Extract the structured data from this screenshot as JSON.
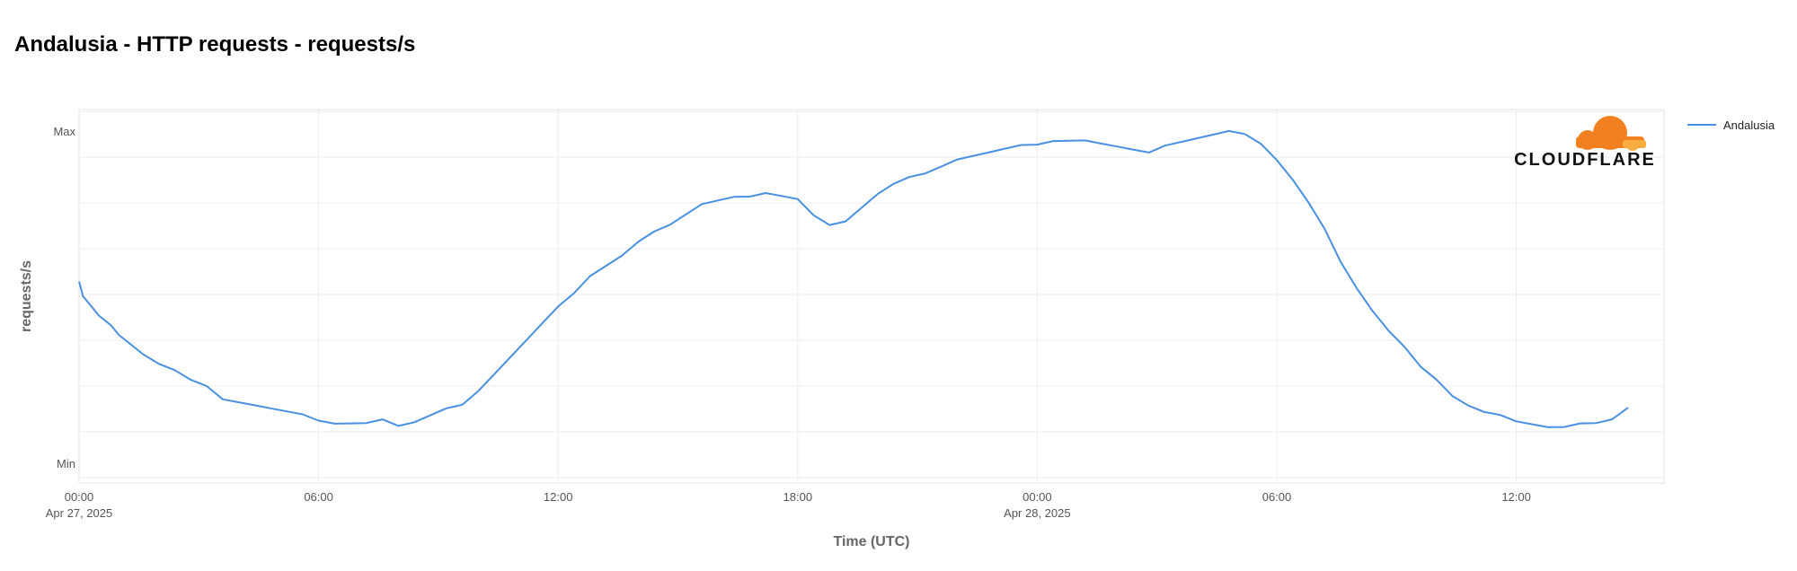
{
  "chart_data": {
    "type": "line",
    "title": "Andalusia - HTTP requests - requests/s",
    "xlabel": "Time (UTC)",
    "ylabel": "requests/s",
    "y_tick_labels": [
      "Max",
      "Min"
    ],
    "ylim": [
      0,
      100
    ],
    "x_ticks": [
      {
        "hour": 0,
        "time": "00:00",
        "date": "Apr 27, 2025"
      },
      {
        "hour": 6,
        "time": "06:00",
        "date": ""
      },
      {
        "hour": 12,
        "time": "12:00",
        "date": ""
      },
      {
        "hour": 18,
        "time": "18:00",
        "date": ""
      },
      {
        "hour": 24,
        "time": "00:00",
        "date": "Apr 28, 2025"
      },
      {
        "hour": 30,
        "time": "06:00",
        "date": ""
      },
      {
        "hour": 36,
        "time": "12:00",
        "date": ""
      }
    ],
    "xlim_hours": [
      0,
      39.7
    ],
    "grid": true,
    "legend": "top-right",
    "series": [
      {
        "name": "Andalusia",
        "color": "#4a90e2",
        "points": [
          [
            0.0,
            55
          ],
          [
            0.1,
            51
          ],
          [
            0.3,
            48
          ],
          [
            0.5,
            45
          ],
          [
            0.8,
            42
          ],
          [
            1.0,
            39
          ],
          [
            1.3,
            36
          ],
          [
            1.6,
            33
          ],
          [
            2.0,
            30
          ],
          [
            2.4,
            28
          ],
          [
            2.8,
            25
          ],
          [
            3.2,
            23
          ],
          [
            3.6,
            20
          ],
          [
            4.0,
            19
          ],
          [
            4.4,
            18
          ],
          [
            4.8,
            17
          ],
          [
            5.2,
            16
          ],
          [
            5.6,
            15
          ],
          [
            6.0,
            13
          ],
          [
            6.4,
            12
          ],
          [
            6.8,
            12
          ],
          [
            7.2,
            12
          ],
          [
            7.6,
            13
          ],
          [
            8.0,
            12
          ],
          [
            8.4,
            13
          ],
          [
            8.8,
            15
          ],
          [
            9.2,
            17
          ],
          [
            9.6,
            18
          ],
          [
            10.0,
            22
          ],
          [
            10.4,
            27
          ],
          [
            10.8,
            32
          ],
          [
            11.2,
            37
          ],
          [
            11.6,
            42
          ],
          [
            12.0,
            47
          ],
          [
            12.4,
            52
          ],
          [
            12.8,
            57
          ],
          [
            13.2,
            60
          ],
          [
            13.6,
            63
          ],
          [
            14.0,
            67
          ],
          [
            14.4,
            70
          ],
          [
            14.8,
            72
          ],
          [
            15.2,
            75
          ],
          [
            15.6,
            78
          ],
          [
            16.0,
            79
          ],
          [
            16.4,
            80
          ],
          [
            16.8,
            81
          ],
          [
            17.2,
            82
          ],
          [
            17.6,
            81
          ],
          [
            18.0,
            80
          ],
          [
            18.4,
            75
          ],
          [
            18.8,
            72
          ],
          [
            19.2,
            73
          ],
          [
            19.6,
            77
          ],
          [
            20.0,
            81
          ],
          [
            20.4,
            84
          ],
          [
            20.8,
            86
          ],
          [
            21.2,
            88
          ],
          [
            21.6,
            90
          ],
          [
            22.0,
            92
          ],
          [
            22.4,
            93
          ],
          [
            22.8,
            94
          ],
          [
            23.2,
            95
          ],
          [
            23.6,
            96
          ],
          [
            24.0,
            96
          ],
          [
            24.4,
            97
          ],
          [
            24.8,
            97
          ],
          [
            25.2,
            97
          ],
          [
            25.6,
            97
          ],
          [
            26.0,
            96
          ],
          [
            26.4,
            95
          ],
          [
            26.8,
            94
          ],
          [
            27.2,
            96
          ],
          [
            27.6,
            97
          ],
          [
            28.0,
            98
          ],
          [
            28.4,
            99
          ],
          [
            28.8,
            100
          ],
          [
            29.2,
            99
          ],
          [
            29.6,
            96
          ],
          [
            30.0,
            92
          ],
          [
            30.4,
            86
          ],
          [
            30.8,
            79
          ],
          [
            31.2,
            71
          ],
          [
            31.6,
            61
          ],
          [
            32.0,
            53
          ],
          [
            32.4,
            46
          ],
          [
            32.8,
            40
          ],
          [
            33.2,
            35
          ],
          [
            33.6,
            29
          ],
          [
            34.0,
            25
          ],
          [
            34.4,
            21
          ],
          [
            34.8,
            18
          ],
          [
            35.2,
            16
          ],
          [
            35.6,
            15
          ],
          [
            36.0,
            13
          ],
          [
            36.4,
            12
          ],
          [
            36.8,
            11
          ],
          [
            37.2,
            11
          ],
          [
            37.6,
            12
          ],
          [
            38.0,
            12
          ],
          [
            38.4,
            13
          ],
          [
            38.8,
            17
          ]
        ]
      }
    ]
  },
  "logo": {
    "text": "CLOUDFLARE",
    "color": "#f38020"
  }
}
